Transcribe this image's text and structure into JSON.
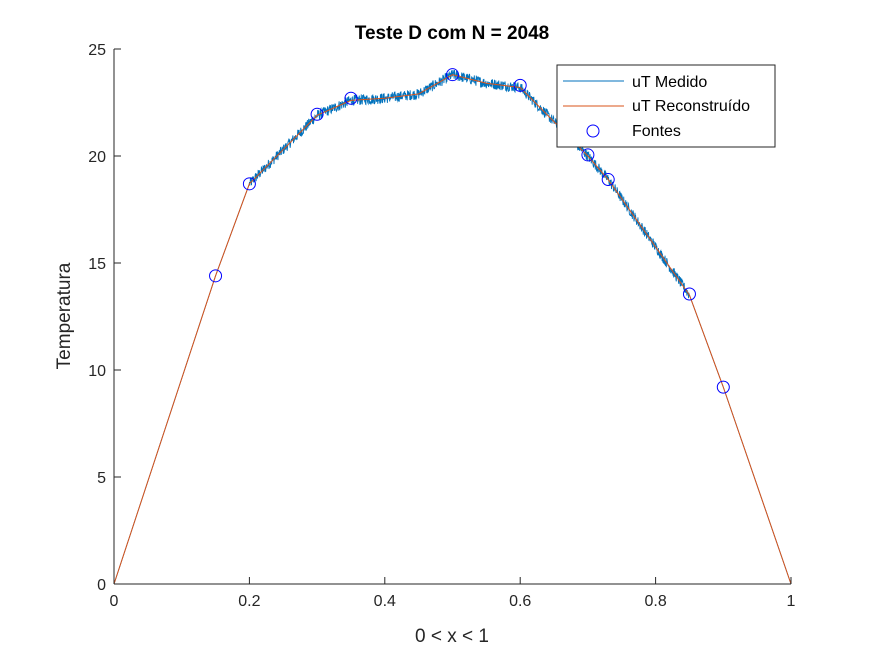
{
  "chart_data": {
    "type": "line",
    "title": "Teste D com N = 2048",
    "xlabel": "0 < x < 1",
    "ylabel": "Temperatura",
    "xlim": [
      0,
      1
    ],
    "ylim": [
      0,
      25
    ],
    "xticks": [
      0,
      0.2,
      0.4,
      0.6,
      0.8,
      1
    ],
    "xtick_labels": [
      "0",
      "0.2",
      "0.4",
      "0.6",
      "0.8",
      "1"
    ],
    "yticks": [
      0,
      5,
      10,
      15,
      20,
      25
    ],
    "ytick_labels": [
      "0",
      "5",
      "10",
      "15",
      "20",
      "25"
    ],
    "grid": false,
    "legend_position": "top-right",
    "series": [
      {
        "name": "uT Medido",
        "color": "#0072BD",
        "style": "line",
        "noise_amplitude": 0.25,
        "noise_range": [
          0.2,
          0.85
        ],
        "x": [
          0,
          0.15,
          0.2,
          0.3,
          0.35,
          0.4,
          0.45,
          0.5,
          0.55,
          0.6,
          0.7,
          0.73,
          0.85,
          0.9,
          1
        ],
        "y": [
          0,
          14.4,
          18.7,
          21.9,
          22.6,
          22.7,
          22.9,
          23.8,
          23.4,
          23.2,
          20.0,
          18.9,
          13.5,
          9.2,
          0
        ]
      },
      {
        "name": "uT Reconstruído",
        "color": "#D95319",
        "style": "line",
        "x": [
          0,
          0.15,
          0.2,
          0.3,
          0.35,
          0.4,
          0.45,
          0.5,
          0.55,
          0.6,
          0.7,
          0.73,
          0.85,
          0.9,
          1
        ],
        "y": [
          0,
          14.4,
          18.7,
          21.9,
          22.6,
          22.7,
          22.9,
          23.8,
          23.4,
          23.2,
          20.0,
          18.9,
          13.5,
          9.2,
          0
        ]
      },
      {
        "name": "Fontes",
        "color": "#0000FF",
        "style": "markers",
        "marker": "circle",
        "x": [
          0.15,
          0.2,
          0.3,
          0.35,
          0.5,
          0.6,
          0.7,
          0.73,
          0.85,
          0.9
        ],
        "y": [
          14.4,
          18.7,
          21.95,
          22.7,
          23.8,
          23.3,
          20.05,
          18.9,
          13.55,
          9.2
        ]
      }
    ]
  }
}
